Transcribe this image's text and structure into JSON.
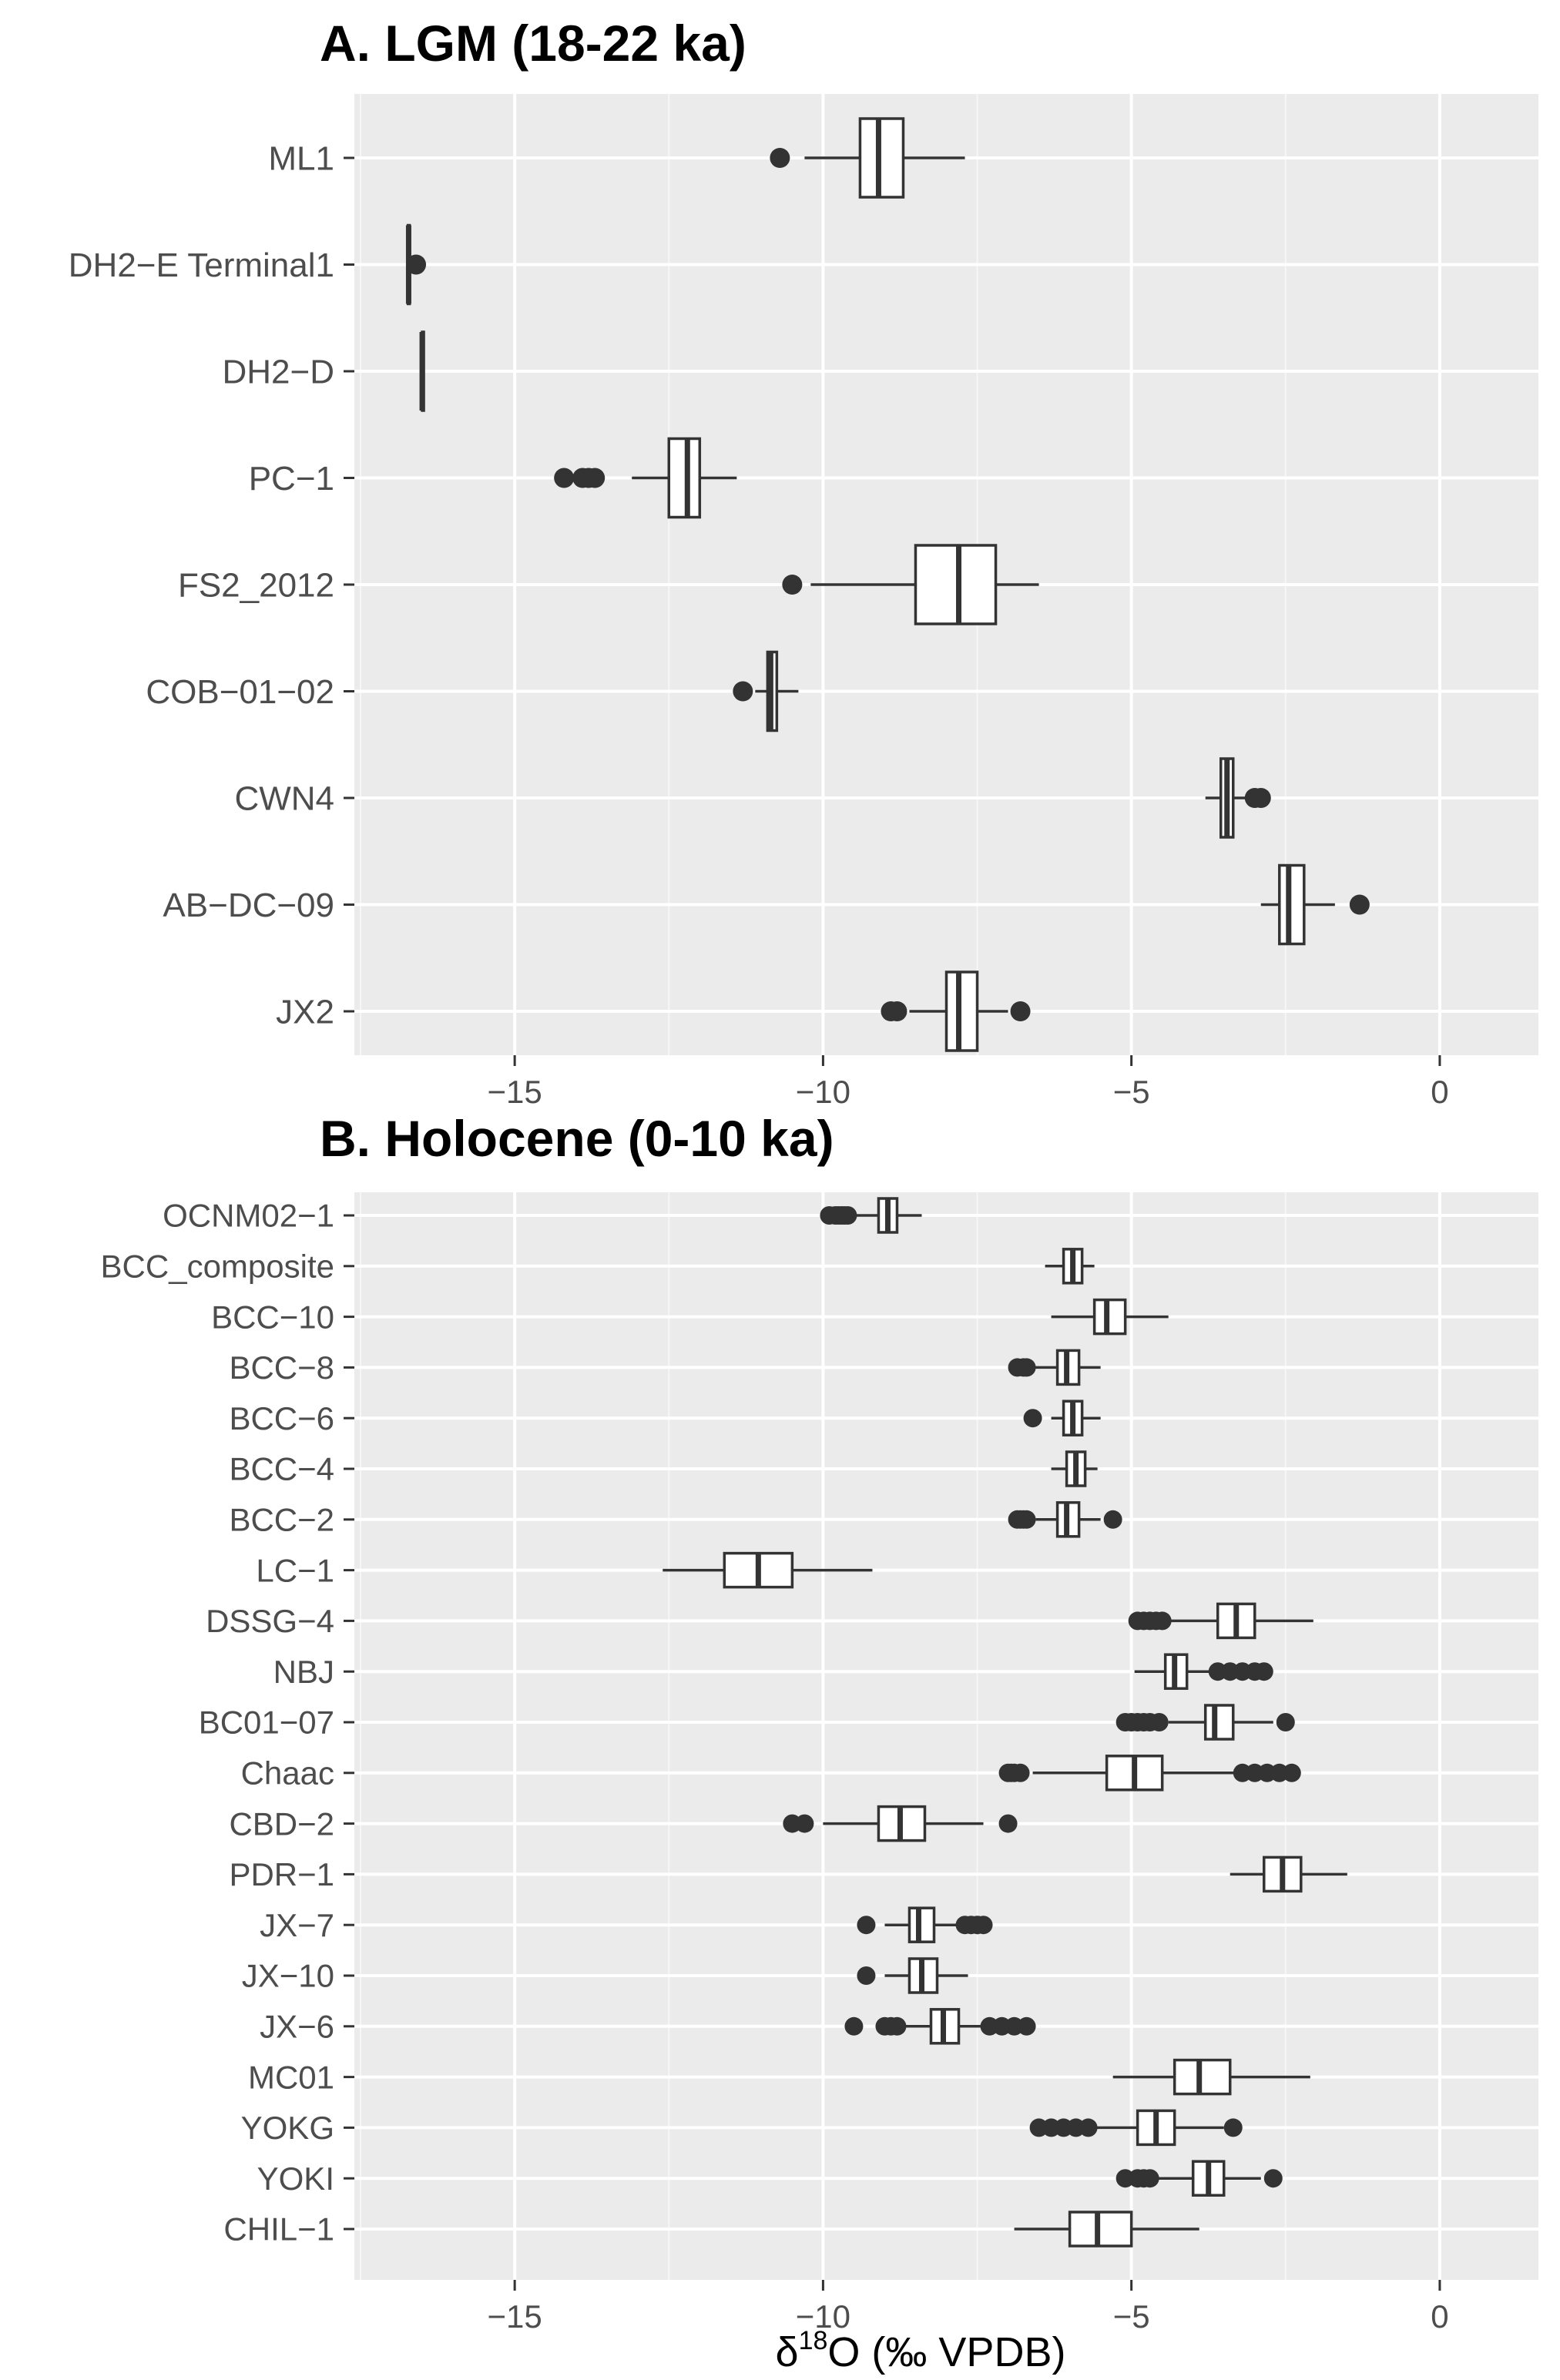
{
  "chart_data": [
    {
      "type": "boxplot",
      "title": "A. LGM (18-22 ka)",
      "orientation": "horizontal",
      "xlim": [
        -17.6,
        1.6
      ],
      "xticks": [
        -15,
        -10,
        -5,
        0
      ],
      "xtick_labels": [
        "−15",
        "−10",
        "−5",
        "0"
      ],
      "xlabel": "",
      "categories": [
        "ML1",
        "DH2−E Terminal1",
        "DH2−D",
        "PC−1",
        "FS2_2012",
        "COB−01−02",
        "CWN4",
        "AB−DC−09",
        "JX2"
      ],
      "boxes": [
        {
          "min": -10.3,
          "q1": -9.4,
          "median": -9.1,
          "q3": -8.7,
          "max": -7.7,
          "outliers": [
            -10.7
          ]
        },
        {
          "min": -16.75,
          "q1": -16.73,
          "median": -16.72,
          "q3": -16.71,
          "max": -16.6,
          "outliers": [
            -16.6
          ]
        },
        {
          "min": -16.5,
          "q1": -16.5,
          "median": -16.5,
          "q3": -16.5,
          "max": -16.5,
          "outliers": []
        },
        {
          "min": -13.1,
          "q1": -12.5,
          "median": -12.2,
          "q3": -12.0,
          "max": -11.4,
          "outliers": [
            -14.2,
            -13.9,
            -13.8,
            -13.7
          ]
        },
        {
          "min": -10.2,
          "q1": -8.5,
          "median": -7.8,
          "q3": -7.2,
          "max": -6.5,
          "outliers": [
            -10.5
          ]
        },
        {
          "min": -11.1,
          "q1": -10.9,
          "median": -10.85,
          "q3": -10.75,
          "max": -10.4,
          "outliers": [
            -11.3
          ]
        },
        {
          "min": -3.8,
          "q1": -3.55,
          "median": -3.45,
          "q3": -3.35,
          "max": -3.1,
          "outliers": [
            -3.0,
            -2.9
          ]
        },
        {
          "min": -2.9,
          "q1": -2.6,
          "median": -2.45,
          "q3": -2.2,
          "max": -1.7,
          "outliers": [
            -1.3
          ]
        },
        {
          "min": -8.6,
          "q1": -8.0,
          "median": -7.8,
          "q3": -7.5,
          "max": -7.0,
          "outliers": [
            -8.9,
            -8.8,
            -6.8
          ]
        }
      ]
    },
    {
      "type": "boxplot",
      "title": "B. Holocene (0-10 ka)",
      "orientation": "horizontal",
      "xlim": [
        -17.6,
        1.6
      ],
      "xticks": [
        -15,
        -10,
        -5,
        0
      ],
      "xtick_labels": [
        "−15",
        "−10",
        "−5",
        "0"
      ],
      "xlabel_main": "δ",
      "xlabel_sup": "18",
      "xlabel_rest": "O (‰ VPDB)",
      "categories": [
        "OCNM02−1",
        "BCC_composite",
        "BCC−10",
        "BCC−8",
        "BCC−6",
        "BCC−4",
        "BCC−2",
        "LC−1",
        "DSSG−4",
        "NBJ",
        "BC01−07",
        "Chaac",
        "CBD−2",
        "PDR−1",
        "JX−7",
        "JX−10",
        "JX−6",
        "MC01",
        "YOKG",
        "YOKI",
        "CHIL−1"
      ],
      "boxes": [
        {
          "min": -9.5,
          "q1": -9.1,
          "median": -8.95,
          "q3": -8.8,
          "max": -8.4,
          "outliers": [
            -9.9,
            -9.8,
            -9.75,
            -9.7,
            -9.65,
            -9.6
          ]
        },
        {
          "min": -6.4,
          "q1": -6.1,
          "median": -5.95,
          "q3": -5.8,
          "max": -5.6,
          "outliers": []
        },
        {
          "min": -6.3,
          "q1": -5.6,
          "median": -5.4,
          "q3": -5.1,
          "max": -4.4,
          "outliers": []
        },
        {
          "min": -6.6,
          "q1": -6.2,
          "median": -6.05,
          "q3": -5.85,
          "max": -5.5,
          "outliers": [
            -6.85,
            -6.75,
            -6.7
          ]
        },
        {
          "min": -6.3,
          "q1": -6.1,
          "median": -5.95,
          "q3": -5.8,
          "max": -5.5,
          "outliers": [
            -6.6
          ]
        },
        {
          "min": -6.3,
          "q1": -6.05,
          "median": -5.9,
          "q3": -5.75,
          "max": -5.55,
          "outliers": []
        },
        {
          "min": -6.55,
          "q1": -6.2,
          "median": -6.05,
          "q3": -5.85,
          "max": -5.5,
          "outliers": [
            -6.85,
            -6.8,
            -6.75,
            -6.7,
            -5.3
          ]
        },
        {
          "min": -12.6,
          "q1": -11.6,
          "median": -11.05,
          "q3": -10.5,
          "max": -9.2,
          "outliers": []
        },
        {
          "min": -4.5,
          "q1": -3.6,
          "median": -3.3,
          "q3": -3.0,
          "max": -2.05,
          "outliers": [
            -4.9,
            -4.8,
            -4.7,
            -4.6,
            -4.5
          ]
        },
        {
          "min": -4.95,
          "q1": -4.45,
          "median": -4.3,
          "q3": -4.1,
          "max": -3.7,
          "outliers": [
            -3.6,
            -3.4,
            -3.2,
            -3.0,
            -2.85
          ]
        },
        {
          "min": -4.4,
          "q1": -3.8,
          "median": -3.65,
          "q3": -3.35,
          "max": -2.7,
          "outliers": [
            -5.1,
            -5.0,
            -4.9,
            -4.8,
            -4.7,
            -4.55,
            -2.5
          ]
        },
        {
          "min": -6.6,
          "q1": -5.4,
          "median": -4.95,
          "q3": -4.5,
          "max": -3.3,
          "outliers": [
            -7.0,
            -6.95,
            -6.9,
            -6.8,
            -3.2,
            -3.0,
            -2.8,
            -2.6,
            -2.4
          ]
        },
        {
          "min": -10.0,
          "q1": -9.1,
          "median": -8.75,
          "q3": -8.35,
          "max": -7.4,
          "outliers": [
            -10.5,
            -10.3,
            -7.0
          ]
        },
        {
          "min": -3.4,
          "q1": -2.85,
          "median": -2.55,
          "q3": -2.25,
          "max": -1.5,
          "outliers": []
        },
        {
          "min": -9.0,
          "q1": -8.6,
          "median": -8.45,
          "q3": -8.2,
          "max": -7.8,
          "outliers": [
            -9.3,
            -7.7,
            -7.6,
            -7.5,
            -7.4
          ]
        },
        {
          "min": -9.0,
          "q1": -8.6,
          "median": -8.4,
          "q3": -8.15,
          "max": -7.65,
          "outliers": [
            -9.3
          ]
        },
        {
          "min": -8.7,
          "q1": -8.25,
          "median": -8.05,
          "q3": -7.8,
          "max": -7.4,
          "outliers": [
            -9.5,
            -9.0,
            -8.9,
            -8.8,
            -7.3,
            -7.1,
            -6.9,
            -6.7
          ]
        },
        {
          "min": -5.3,
          "q1": -4.3,
          "median": -3.9,
          "q3": -3.4,
          "max": -2.1,
          "outliers": []
        },
        {
          "min": -5.6,
          "q1": -4.9,
          "median": -4.6,
          "q3": -4.3,
          "max": -3.5,
          "outliers": [
            -6.5,
            -6.3,
            -6.1,
            -5.9,
            -5.7,
            -3.35
          ]
        },
        {
          "min": -4.6,
          "q1": -4.0,
          "median": -3.75,
          "q3": -3.5,
          "max": -2.9,
          "outliers": [
            -5.1,
            -4.9,
            -4.8,
            -4.7,
            -2.7
          ]
        },
        {
          "min": -6.9,
          "q1": -6.0,
          "median": -5.55,
          "q3": -5.0,
          "max": -3.9,
          "outliers": []
        }
      ]
    }
  ]
}
